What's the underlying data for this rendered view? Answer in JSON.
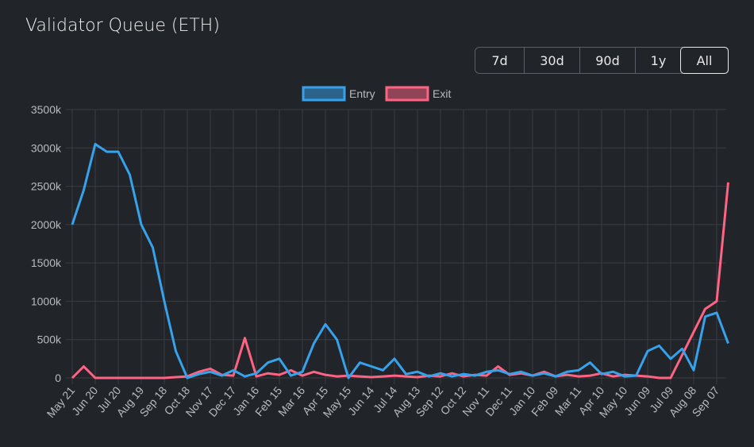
{
  "title": "Validator Queue (ETH)",
  "range_buttons": [
    {
      "label": "7d",
      "active": false
    },
    {
      "label": "30d",
      "active": false
    },
    {
      "label": "90d",
      "active": false
    },
    {
      "label": "1y",
      "active": false
    },
    {
      "label": "All",
      "active": true
    }
  ],
  "chart_data": {
    "type": "line",
    "legend_position": "top",
    "grid": true,
    "ylim": [
      0,
      3500
    ],
    "y_ticks": [
      "0",
      "500k",
      "1000k",
      "1500k",
      "2000k",
      "2500k",
      "3000k",
      "3500k"
    ],
    "x_tick_labels": [
      "May 21",
      "Jun 20",
      "Jul 20",
      "Aug 19",
      "Sep 18",
      "Oct 18",
      "Nov 17",
      "Dec 17",
      "Jan 16",
      "Feb 15",
      "Mar 16",
      "Apr 15",
      "May 15",
      "Jun 14",
      "Jul 14",
      "Aug 13",
      "Sep 12",
      "Oct 12",
      "Nov 11",
      "Dec 11",
      "Jan 10",
      "Feb 09",
      "Mar 11",
      "Apr 10",
      "May 10",
      "Jun 09",
      "Jul 09",
      "Aug 08",
      "Sep 07"
    ],
    "x_start": "2023-05-21",
    "x_step_days": 15,
    "y_unit": "k ETH",
    "series": [
      {
        "name": "Entry",
        "color": "#36a2eb",
        "values": [
          2000,
          2450,
          3050,
          2950,
          2950,
          2650,
          2000,
          1700,
          1000,
          350,
          0,
          50,
          80,
          30,
          100,
          20,
          60,
          200,
          250,
          30,
          80,
          450,
          700,
          500,
          0,
          200,
          150,
          100,
          250,
          50,
          80,
          20,
          60,
          20,
          50,
          30,
          80,
          100,
          50,
          80,
          30,
          60,
          20,
          80,
          100,
          200,
          50,
          80,
          20,
          30,
          350,
          420,
          250,
          380,
          100,
          800,
          850,
          450
        ]
      },
      {
        "name": "Exit",
        "color": "#ff6384",
        "values": [
          0,
          150,
          0,
          0,
          0,
          0,
          0,
          0,
          0,
          10,
          20,
          80,
          120,
          40,
          30,
          520,
          20,
          60,
          40,
          100,
          30,
          80,
          40,
          20,
          30,
          20,
          10,
          20,
          30,
          20,
          10,
          30,
          20,
          60,
          20,
          40,
          30,
          150,
          40,
          60,
          30,
          80,
          20,
          40,
          20,
          30,
          60,
          20,
          40,
          30,
          20,
          0,
          0,
          300,
          600,
          900,
          1000,
          2550
        ]
      }
    ]
  }
}
